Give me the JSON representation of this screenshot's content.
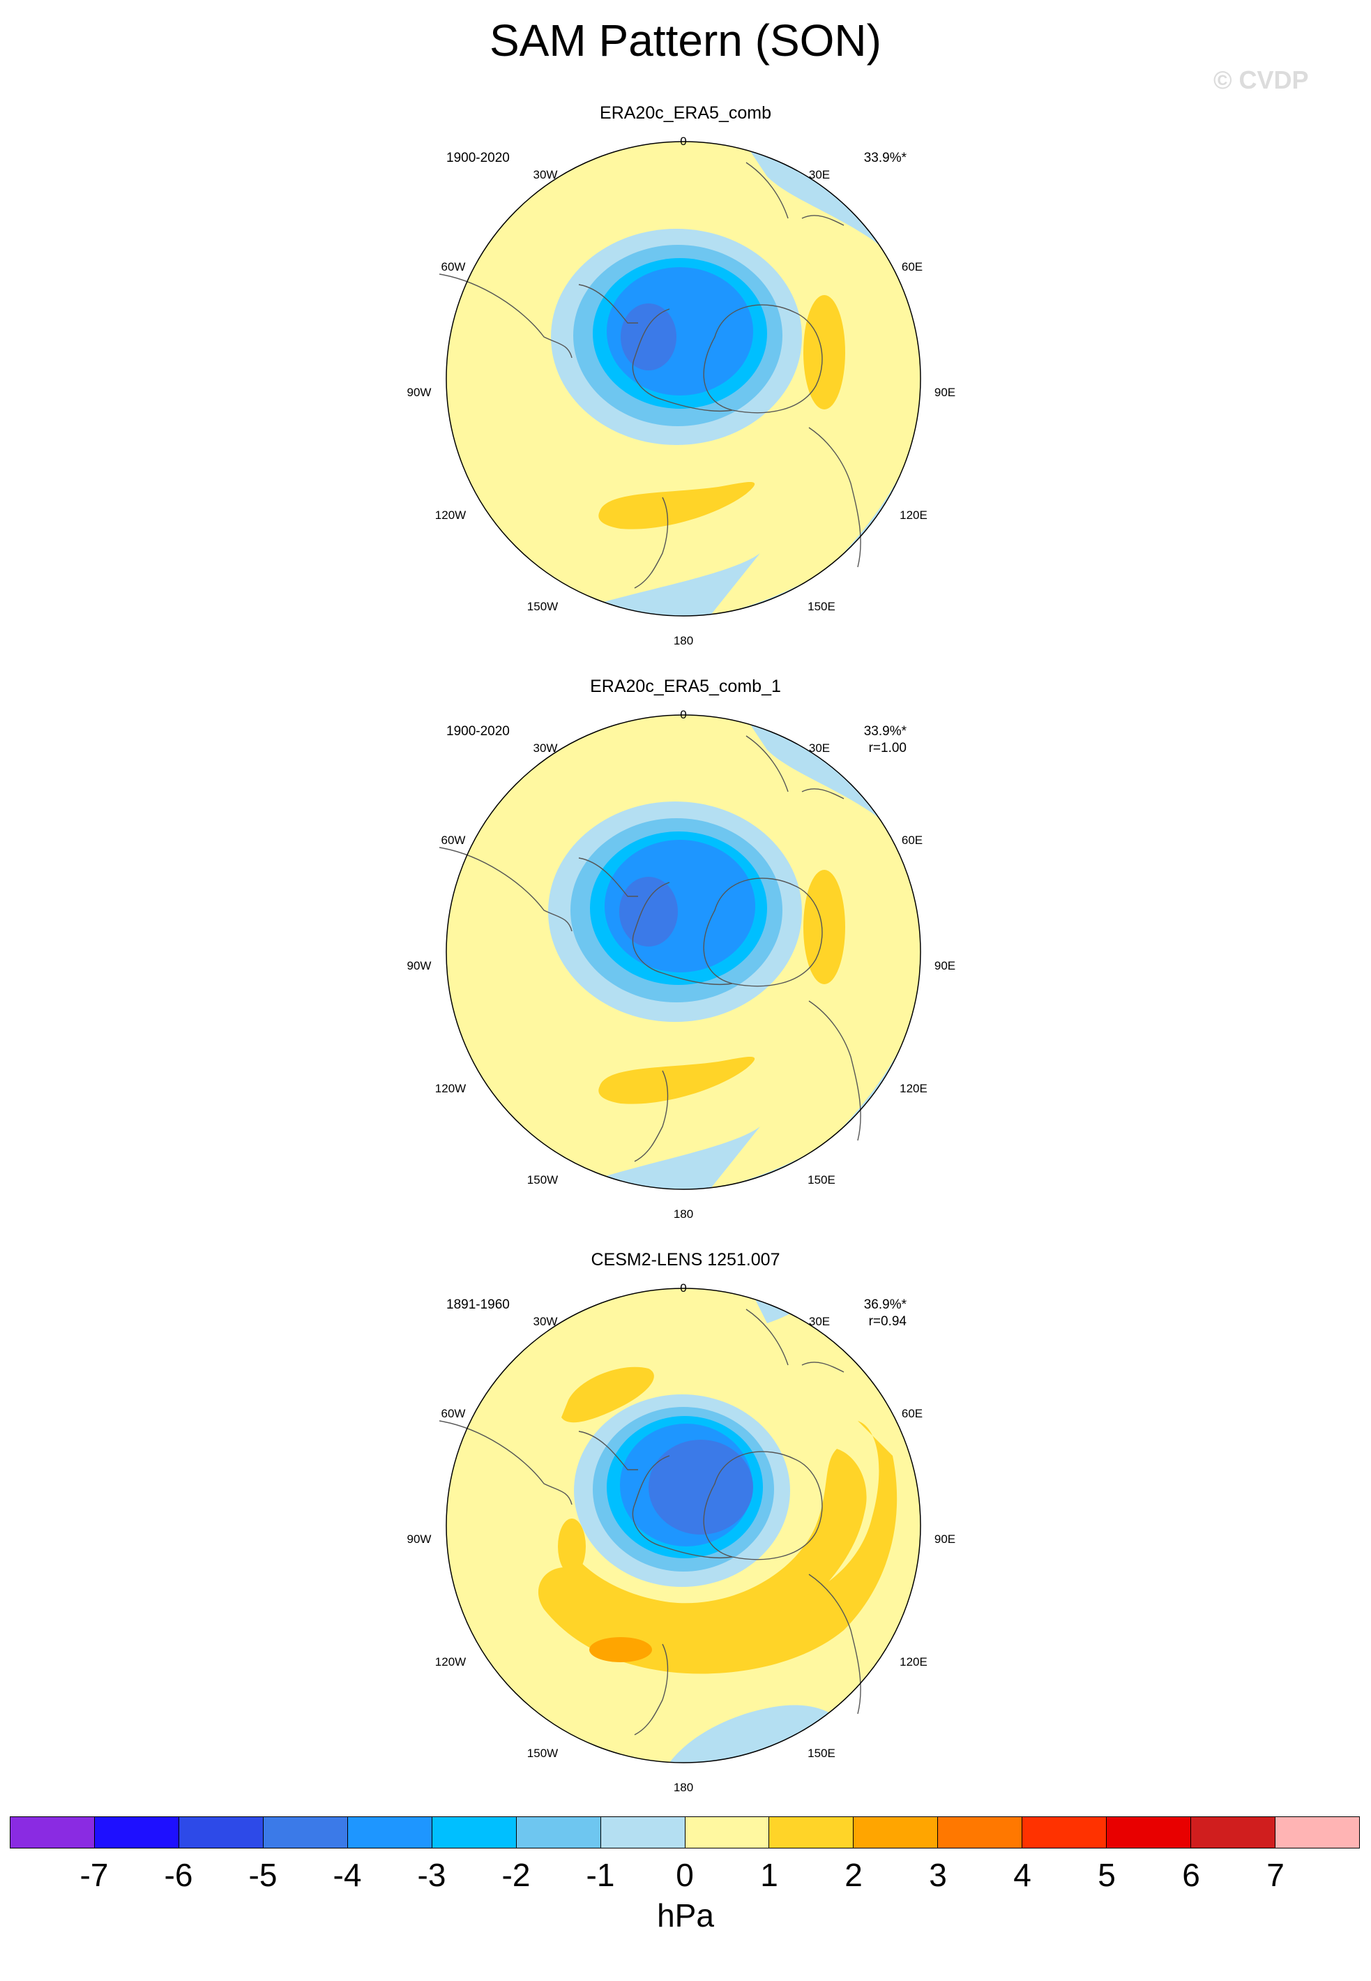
{
  "title": "SAM Pattern (SON)",
  "watermark": "© CVDP",
  "longitude_labels": [
    "0",
    "30E",
    "60E",
    "90E",
    "120E",
    "150E",
    "180",
    "150W",
    "120W",
    "90W",
    "60W",
    "30W"
  ],
  "panels": [
    {
      "title": "ERA20c_ERA5_comb",
      "period": "1900-2020",
      "stat_line1": "33.9%*",
      "stat_line2": ""
    },
    {
      "title": "ERA20c_ERA5_comb_1",
      "period": "1900-2020",
      "stat_line1": "33.9%*",
      "stat_line2": "r=1.00"
    },
    {
      "title": "CESM2-LENS 1251.007",
      "period": "1891-1960",
      "stat_line1": "36.9%*",
      "stat_line2": "r=0.94"
    }
  ],
  "colorbar": {
    "colors": [
      "#8a2be2",
      "#1e10ff",
      "#2d4ae8",
      "#3b7ae8",
      "#1e96ff",
      "#00bfff",
      "#6ec6f0",
      "#b4dff2",
      "#fff8a0",
      "#ffd428",
      "#ffa500",
      "#ff7800",
      "#ff3200",
      "#e80000",
      "#d01e1e",
      "#ffb4b4"
    ],
    "ticks": [
      "-7",
      "-6",
      "-5",
      "-4",
      "-3",
      "-2",
      "-1",
      "0",
      "1",
      "2",
      "3",
      "4",
      "5",
      "6",
      "7"
    ],
    "units": "hPa"
  },
  "map_colors": {
    "pos_0_1": "#fff8a0",
    "pos_1_2": "#ffd428",
    "pos_2_3": "#ffa500",
    "neg_0_1": "#b4dff2",
    "neg_1_2": "#6ec6f0",
    "neg_2_3": "#00bfff",
    "neg_3_4": "#1e96ff",
    "neg_4_5": "#3b7ae8"
  }
}
